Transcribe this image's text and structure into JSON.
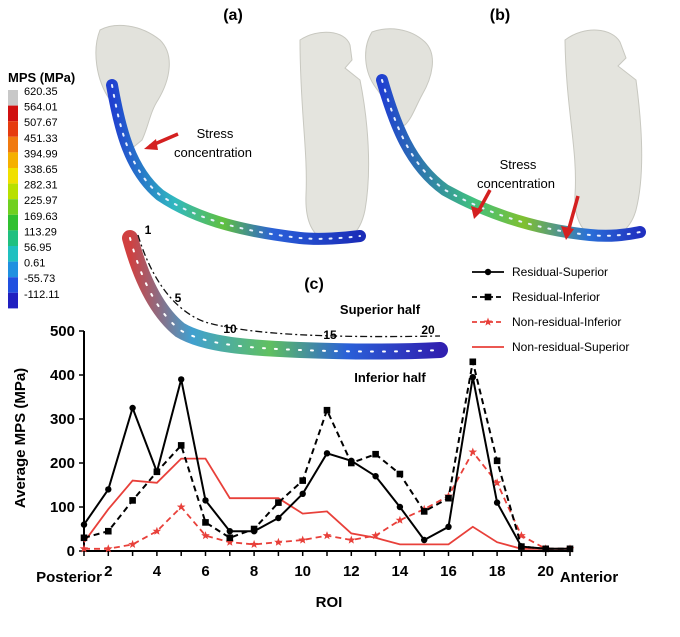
{
  "panels": {
    "a": "(a)",
    "b": "(b)",
    "c": "(c)"
  },
  "colorbar": {
    "title": "MPS (MPa)",
    "labels": [
      "620.35",
      "564.01",
      "507.67",
      "451.33",
      "394.99",
      "338.65",
      "282.31",
      "225.97",
      "169.63",
      "113.29",
      "56.95",
      "0.61",
      "-55.73",
      "-112.11"
    ],
    "colors": [
      "#c8c8c8",
      "#d01010",
      "#e63c10",
      "#f07a10",
      "#f5b000",
      "#f0e000",
      "#b8e000",
      "#70d020",
      "#30c030",
      "#20c080",
      "#20c0c0",
      "#2090e0",
      "#2050e0",
      "#2020c0"
    ]
  },
  "annotations": {
    "stress_a": [
      "Stress",
      "concentration"
    ],
    "stress_b": [
      "Stress",
      "concentration"
    ],
    "superior_half": "Superior half",
    "inferior_half": "Inferior half",
    "roi_numbers": [
      "1",
      "5",
      "10",
      "15",
      "20"
    ]
  },
  "chart_data": {
    "type": "line",
    "ylabel": "Average MPS (MPa)",
    "xlabel": "ROI",
    "x_left_label": "Posterior",
    "x_right_label": "Anterior",
    "xlim": [
      1,
      21
    ],
    "ylim": [
      0,
      500
    ],
    "xticks": [
      2,
      4,
      6,
      8,
      10,
      12,
      14,
      16,
      18,
      20
    ],
    "yticks": [
      0,
      100,
      200,
      300,
      400,
      500
    ],
    "x": [
      1,
      2,
      3,
      4,
      5,
      6,
      7,
      8,
      9,
      10,
      11,
      12,
      13,
      14,
      15,
      16,
      17,
      18,
      19,
      20,
      21
    ],
    "series": [
      {
        "name": "Residual-Superior",
        "color": "#000000",
        "dash": "solid",
        "marker": "circle",
        "values": [
          60,
          140,
          325,
          180,
          390,
          115,
          45,
          45,
          75,
          130,
          222,
          205,
          170,
          100,
          25,
          55,
          395,
          110,
          10,
          5,
          5
        ]
      },
      {
        "name": "Residual-Inferior",
        "color": "#000000",
        "dash": "dashed",
        "marker": "square",
        "values": [
          30,
          45,
          115,
          180,
          240,
          65,
          30,
          50,
          110,
          160,
          320,
          200,
          220,
          175,
          90,
          120,
          430,
          205,
          10,
          5,
          5
        ]
      },
      {
        "name": "Non-residual-Inferior",
        "color": "#e8403a",
        "dash": "dashed",
        "marker": "star",
        "values": [
          5,
          5,
          15,
          45,
          100,
          35,
          20,
          15,
          20,
          25,
          35,
          25,
          35,
          70,
          95,
          125,
          225,
          155,
          35,
          5,
          5
        ]
      },
      {
        "name": "Non-residual-Superior",
        "color": "#e8403a",
        "dash": "solid",
        "marker": "none",
        "values": [
          20,
          95,
          160,
          155,
          210,
          210,
          120,
          120,
          120,
          85,
          90,
          40,
          30,
          15,
          15,
          15,
          55,
          20,
          5,
          5,
          5
        ]
      }
    ]
  }
}
